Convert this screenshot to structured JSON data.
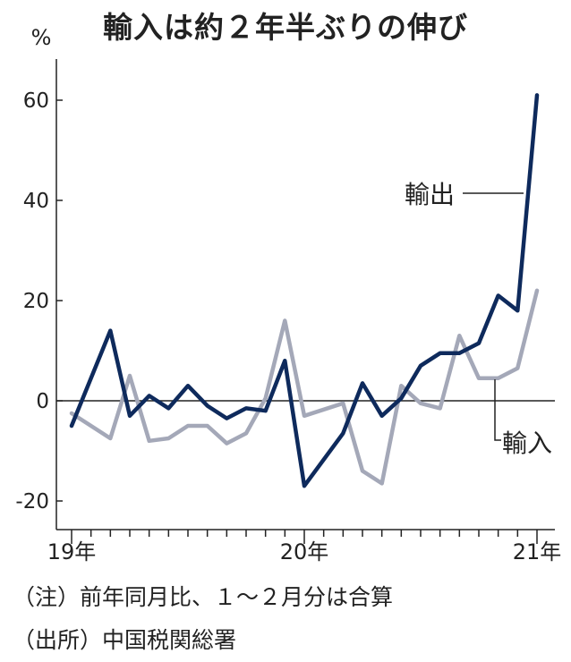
{
  "chart_data": {
    "type": "line",
    "title": "輸入は約２年半ぶりの伸び",
    "unit_label": "%",
    "ylim": [
      -20,
      70
    ],
    "yticks": [
      -20,
      0,
      20,
      40,
      60
    ],
    "ytick_labels": [
      "-20",
      "0",
      "20",
      "40",
      "60"
    ],
    "x": [
      "2019-01",
      "2019-03",
      "2019-04",
      "2019-05",
      "2019-06",
      "2019-07",
      "2019-08",
      "2019-09",
      "2019-10",
      "2019-11",
      "2019-12",
      "2020-01",
      "2020-03",
      "2020-04",
      "2020-05",
      "2020-06",
      "2020-07",
      "2020-08",
      "2020-09",
      "2020-10",
      "2020-11",
      "2020-12",
      "2021-01"
    ],
    "xtick_positions": [
      "2019-01",
      "2020-01",
      "2021-01"
    ],
    "xtick_labels": [
      "19年",
      "20年",
      "21年"
    ],
    "series": [
      {
        "name": "輸出",
        "color": "#0e2a5c",
        "values": [
          -5,
          14,
          -3,
          1,
          -1.5,
          3,
          -1,
          -3.5,
          -1.5,
          -2,
          8,
          -17,
          -6.5,
          3.5,
          -3,
          0.5,
          7,
          9.5,
          9.5,
          11.5,
          21,
          18,
          61
        ]
      },
      {
        "name": "輸入",
        "color": "#a4a8b8",
        "values": [
          -2.5,
          -7.5,
          5,
          -8,
          -7.5,
          -5,
          -5,
          -8.5,
          -6.5,
          0.5,
          16,
          -3,
          -0.5,
          -14,
          -16.5,
          3,
          -0.5,
          -1.5,
          13,
          4.5,
          4.5,
          6.5,
          22
        ]
      }
    ]
  },
  "notes": {
    "note1": "（注）前年同月比、１～２月分は合算",
    "note2": "（出所）中国税関総署"
  }
}
